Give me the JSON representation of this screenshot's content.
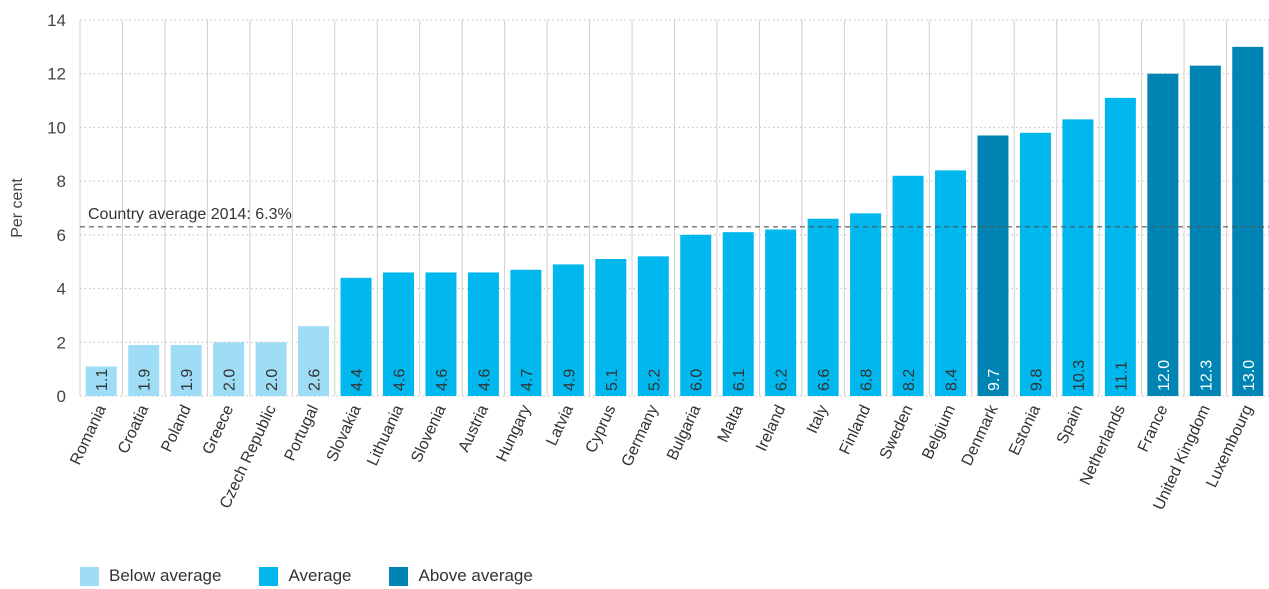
{
  "chart_data": {
    "type": "bar",
    "ylabel": "Per cent",
    "ylim": [
      0,
      14
    ],
    "yticks": [
      0,
      2,
      4,
      6,
      8,
      10,
      12,
      14
    ],
    "grid": true,
    "categories": [
      "Romania",
      "Croatia",
      "Poland",
      "Greece",
      "Czech Republic",
      "Portugal",
      "Slovakia",
      "Lithuania",
      "Slovenia",
      "Austria",
      "Hungary",
      "Latvia",
      "Cyprus",
      "Germany",
      "Bulgaria",
      "Malta",
      "Ireland",
      "Italy",
      "Finland",
      "Sweden",
      "Belgium",
      "Denmark",
      "Estonia",
      "Spain",
      "Netherlands",
      "France",
      "United Kingdom",
      "Luxembourg"
    ],
    "values": [
      1.1,
      1.9,
      1.9,
      2.0,
      2.0,
      2.6,
      4.4,
      4.6,
      4.6,
      4.6,
      4.7,
      4.9,
      5.1,
      5.2,
      6.0,
      6.1,
      6.2,
      6.6,
      6.8,
      8.2,
      8.4,
      9.7,
      9.8,
      10.3,
      11.1,
      12.0,
      12.3,
      13.0
    ],
    "value_labels": [
      "1.1",
      "1.9",
      "1.9",
      "2.0",
      "2.0",
      "2.6",
      "4.4",
      "4.6",
      "4.6",
      "4.6",
      "4.7",
      "4.9",
      "5.1",
      "5.2",
      "6.0",
      "6.1",
      "6.2",
      "6.6",
      "6.8",
      "8.2",
      "8.4",
      "9.7",
      "9.8",
      "10.3",
      "11.1",
      "12.0",
      "12.3",
      "13.0"
    ],
    "groups": [
      "below",
      "below",
      "below",
      "below",
      "below",
      "below",
      "average",
      "average",
      "average",
      "average",
      "average",
      "average",
      "average",
      "average",
      "average",
      "average",
      "average",
      "average",
      "average",
      "average",
      "average",
      "above",
      "average",
      "average",
      "average",
      "above",
      "above",
      "above"
    ],
    "reference_line": {
      "value": 6.3,
      "label": "Country average 2014: 6.3%"
    },
    "legend": [
      {
        "key": "below",
        "label": "Below average",
        "color": "#9fdcf5"
      },
      {
        "key": "average",
        "label": "Average",
        "color": "#00b7ee"
      },
      {
        "key": "above",
        "label": "Above average",
        "color": "#0084b4"
      }
    ],
    "legend_position": "bottom-left"
  }
}
